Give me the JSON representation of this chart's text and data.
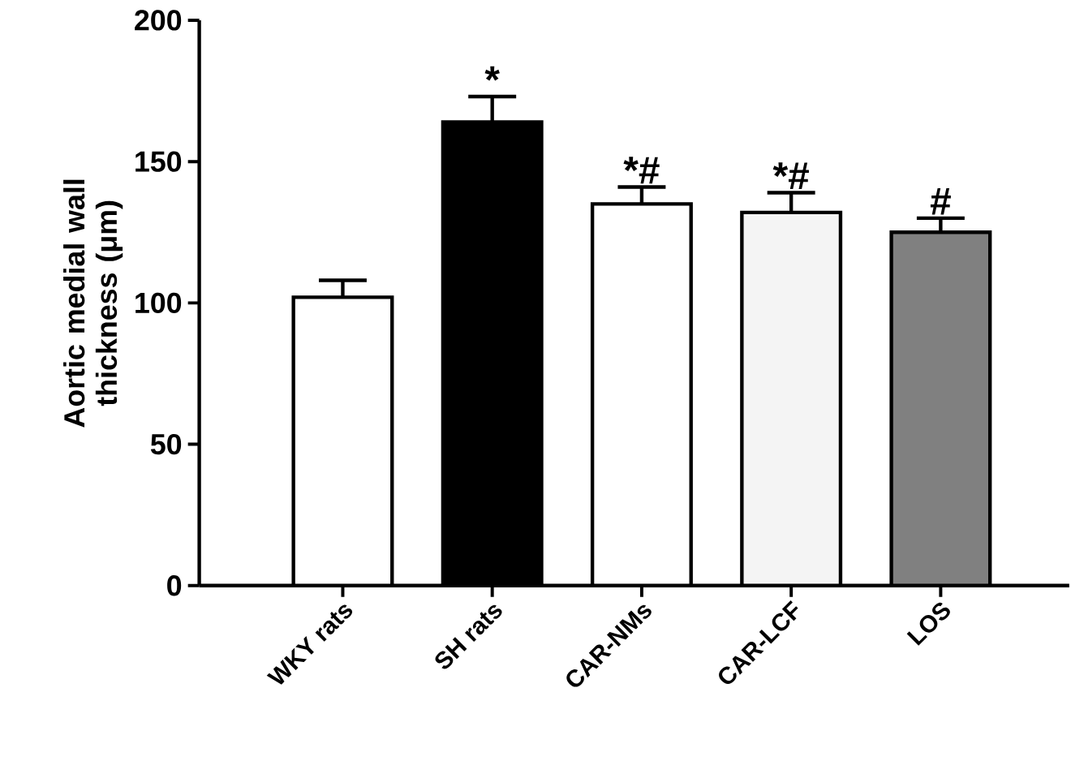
{
  "chart_data": {
    "type": "bar",
    "ylabel": "Aortic medial wall  thickness  (μm)",
    "categories": [
      "WKY rats",
      "SH rats",
      "CAR-NMs",
      "CAR-LCF",
      "LOS"
    ],
    "values": [
      102,
      164,
      135,
      132,
      125
    ],
    "colors": [
      "#ffffff",
      "#000000",
      "#ffffff",
      "#f4f4f4",
      "#808080"
    ],
    "errors": [
      [
        102,
        108
      ],
      [
        164,
        173
      ],
      [
        135,
        141
      ],
      [
        132,
        139
      ],
      [
        125,
        130
      ]
    ],
    "ylim": [
      0,
      200
    ],
    "yticks": [
      0,
      50,
      100,
      150,
      200
    ],
    "annotations": [
      {
        "text": "*",
        "x": "SH rats",
        "y": 173
      },
      {
        "text": "*#",
        "x": "CAR-NMs",
        "y": 141
      },
      {
        "text": "*#",
        "x": "CAR-LCF",
        "y": 139
      },
      {
        "text": "#",
        "x": "LOS",
        "y": 130
      }
    ]
  }
}
